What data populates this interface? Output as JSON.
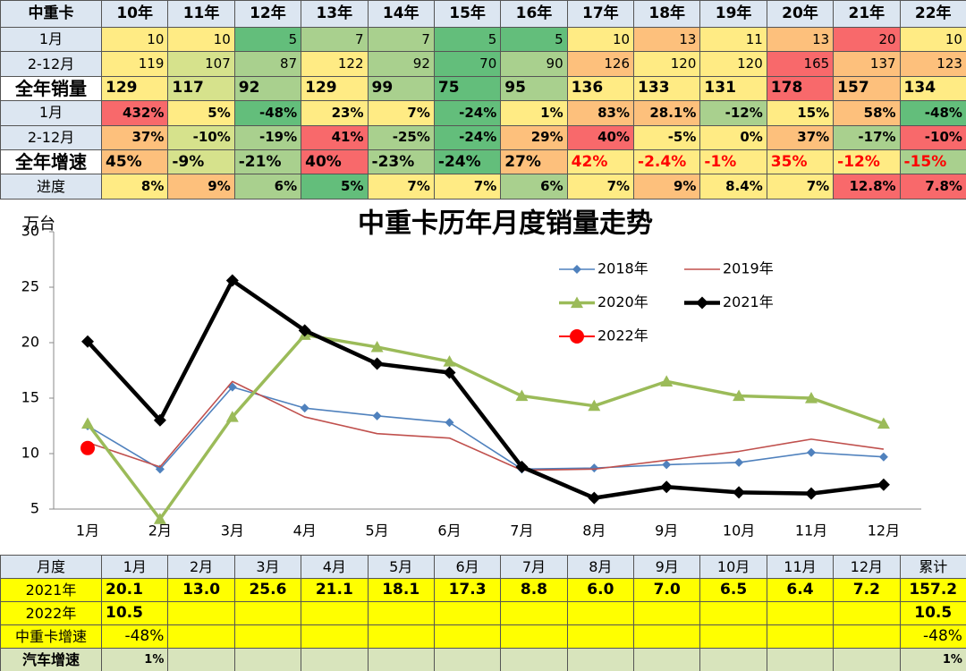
{
  "top_table": {
    "header": [
      "中重卡",
      "10年",
      "11年",
      "12年",
      "13年",
      "14年",
      "15年",
      "16年",
      "17年",
      "18年",
      "19年",
      "20年",
      "21年",
      "22年"
    ],
    "rows": [
      {
        "label": "1月",
        "cells": [
          "10",
          "10",
          "5",
          "7",
          "7",
          "5",
          "5",
          "10",
          "13",
          "11",
          "13",
          "20",
          "10"
        ]
      },
      {
        "label": "2-12月",
        "cells": [
          "119",
          "107",
          "87",
          "122",
          "92",
          "70",
          "90",
          "126",
          "120",
          "120",
          "165",
          "137",
          "123"
        ]
      },
      {
        "label": "全年销量",
        "cells": [
          "129",
          "117",
          "92",
          "129",
          "99",
          "75",
          "95",
          "136",
          "133",
          "131",
          "178",
          "157",
          "134"
        ]
      },
      {
        "label": "1月",
        "cells": [
          "432%",
          "5%",
          "-48%",
          "23%",
          "7%",
          "-24%",
          "1%",
          "83%",
          "28.1%",
          "-12%",
          "15%",
          "58%",
          "-48%"
        ]
      },
      {
        "label": "2-12月",
        "cells": [
          "37%",
          "-10%",
          "-19%",
          "41%",
          "-25%",
          "-24%",
          "29%",
          "40%",
          "-5%",
          "0%",
          "37%",
          "-17%",
          "-10%"
        ]
      },
      {
        "label": "全年增速",
        "cells": [
          "45%",
          "-9%",
          "-21%",
          "40%",
          "-23%",
          "-24%",
          "27%",
          "42%",
          "-2.4%",
          "-1%",
          "35%",
          "-12%",
          "-15%"
        ]
      },
      {
        "label": "进度",
        "cells": [
          "8%",
          "9%",
          "6%",
          "5%",
          "7%",
          "7%",
          "6%",
          "7%",
          "9%",
          "8.4%",
          "7%",
          "12.8%",
          "7.8%"
        ]
      }
    ]
  },
  "chart_data": {
    "type": "line",
    "title": "中重卡历年月度销量走势",
    "y_label": "万台",
    "categories": [
      "1月",
      "2月",
      "3月",
      "4月",
      "5月",
      "6月",
      "7月",
      "8月",
      "9月",
      "10月",
      "11月",
      "12月"
    ],
    "ylim": [
      5,
      30
    ],
    "yticks": [
      5,
      10,
      15,
      20,
      25,
      30
    ],
    "series": [
      {
        "name": "2018年",
        "color": "#4f81bd",
        "marker": "diamond",
        "values": [
          12.5,
          8.6,
          16.0,
          14.1,
          13.4,
          12.8,
          8.6,
          8.7,
          9.0,
          9.2,
          10.1,
          9.7
        ]
      },
      {
        "name": "2019年",
        "color": "#c0504d",
        "marker": "none",
        "values": [
          11.0,
          8.8,
          16.5,
          13.3,
          11.8,
          11.4,
          8.5,
          8.6,
          9.4,
          10.2,
          11.3,
          10.4
        ]
      },
      {
        "name": "2020年",
        "color": "#9bbb59",
        "marker": "triangle",
        "values": [
          12.7,
          4.1,
          13.3,
          20.7,
          19.6,
          18.3,
          15.2,
          14.3,
          16.5,
          15.2,
          15.0,
          12.7
        ]
      },
      {
        "name": "2021年",
        "color": "#000000",
        "marker": "diamond",
        "values": [
          20.1,
          13.0,
          25.6,
          21.1,
          18.1,
          17.3,
          8.8,
          6.0,
          7.0,
          6.5,
          6.4,
          7.2
        ]
      },
      {
        "name": "2022年",
        "color": "#ff0000",
        "marker": "circle",
        "values": [
          10.5,
          null,
          null,
          null,
          null,
          null,
          null,
          null,
          null,
          null,
          null,
          null
        ]
      }
    ]
  },
  "bottom_table": {
    "header": [
      "月度",
      "1月",
      "2月",
      "3月",
      "4月",
      "5月",
      "6月",
      "7月",
      "8月",
      "9月",
      "10月",
      "11月",
      "12月",
      "累计"
    ],
    "rows": [
      {
        "label": "2021年",
        "cells": [
          "20.1",
          "13.0",
          "25.6",
          "21.1",
          "18.1",
          "17.3",
          "8.8",
          "6.0",
          "7.0",
          "6.5",
          "6.4",
          "7.2",
          "157.2"
        ]
      },
      {
        "label": "2022年",
        "cells": [
          "10.5",
          null,
          null,
          null,
          null,
          null,
          null,
          null,
          null,
          null,
          null,
          null,
          "10.5"
        ]
      },
      {
        "label": "中重卡增速",
        "cells": [
          "-48%",
          null,
          null,
          null,
          null,
          null,
          null,
          null,
          null,
          null,
          null,
          null,
          "-48%"
        ]
      },
      {
        "label": "汽车增速",
        "cells": [
          "1%",
          null,
          null,
          null,
          null,
          null,
          null,
          null,
          null,
          null,
          null,
          null,
          "1%"
        ]
      }
    ]
  }
}
